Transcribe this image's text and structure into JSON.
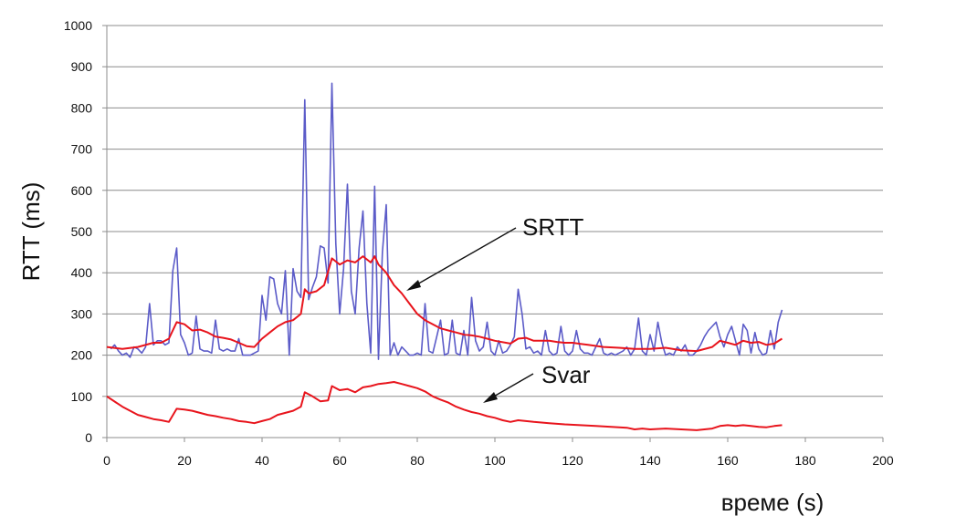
{
  "chart_data": {
    "type": "line",
    "title": "",
    "xlabel": "време (s)",
    "ylabel": "RTT (ms)",
    "xlim": [
      0,
      200
    ],
    "ylim": [
      0,
      1000
    ],
    "xticks": [
      0,
      20,
      40,
      60,
      80,
      100,
      120,
      140,
      160,
      180,
      200
    ],
    "yticks": [
      0,
      100,
      200,
      300,
      400,
      500,
      600,
      700,
      800,
      900,
      1000
    ],
    "grid": "horizontal",
    "colors": {
      "rtt": "#5b5bc8",
      "srtt": "#e8141c",
      "svar": "#e8141c",
      "grid": "#8c8c8c"
    },
    "series": [
      {
        "key": "rtt",
        "values": [
          [
            1,
            215
          ],
          [
            2,
            225
          ],
          [
            3,
            210
          ],
          [
            4,
            200
          ],
          [
            5,
            205
          ],
          [
            6,
            195
          ],
          [
            7,
            220
          ],
          [
            8,
            215
          ],
          [
            9,
            205
          ],
          [
            10,
            220
          ],
          [
            11,
            325
          ],
          [
            12,
            225
          ],
          [
            13,
            235
          ],
          [
            14,
            235
          ],
          [
            15,
            225
          ],
          [
            16,
            230
          ],
          [
            17,
            405
          ],
          [
            18,
            460
          ],
          [
            19,
            250
          ],
          [
            20,
            230
          ],
          [
            21,
            200
          ],
          [
            22,
            205
          ],
          [
            23,
            295
          ],
          [
            24,
            215
          ],
          [
            25,
            210
          ],
          [
            26,
            210
          ],
          [
            27,
            205
          ],
          [
            28,
            285
          ],
          [
            29,
            215
          ],
          [
            30,
            210
          ],
          [
            31,
            215
          ],
          [
            32,
            210
          ],
          [
            33,
            210
          ],
          [
            34,
            240
          ],
          [
            35,
            200
          ],
          [
            36,
            200
          ],
          [
            37,
            200
          ],
          [
            38,
            205
          ],
          [
            39,
            210
          ],
          [
            40,
            345
          ],
          [
            41,
            285
          ],
          [
            42,
            390
          ],
          [
            43,
            385
          ],
          [
            44,
            325
          ],
          [
            45,
            300
          ],
          [
            46,
            405
          ],
          [
            47,
            200
          ],
          [
            48,
            410
          ],
          [
            49,
            355
          ],
          [
            50,
            340
          ],
          [
            51,
            820
          ],
          [
            52,
            335
          ],
          [
            53,
            365
          ],
          [
            54,
            390
          ],
          [
            55,
            465
          ],
          [
            56,
            460
          ],
          [
            57,
            375
          ],
          [
            58,
            860
          ],
          [
            59,
            470
          ],
          [
            60,
            300
          ],
          [
            61,
            410
          ],
          [
            62,
            615
          ],
          [
            63,
            355
          ],
          [
            64,
            300
          ],
          [
            65,
            460
          ],
          [
            66,
            550
          ],
          [
            67,
            325
          ],
          [
            68,
            205
          ],
          [
            69,
            610
          ],
          [
            70,
            190
          ],
          [
            71,
            450
          ],
          [
            72,
            565
          ],
          [
            73,
            200
          ],
          [
            74,
            230
          ],
          [
            75,
            200
          ],
          [
            76,
            220
          ],
          [
            77,
            210
          ],
          [
            78,
            200
          ],
          [
            79,
            200
          ],
          [
            80,
            205
          ],
          [
            81,
            200
          ],
          [
            82,
            325
          ],
          [
            83,
            210
          ],
          [
            84,
            205
          ],
          [
            85,
            245
          ],
          [
            86,
            285
          ],
          [
            87,
            200
          ],
          [
            88,
            205
          ],
          [
            89,
            285
          ],
          [
            90,
            205
          ],
          [
            91,
            200
          ],
          [
            92,
            260
          ],
          [
            93,
            200
          ],
          [
            94,
            340
          ],
          [
            95,
            235
          ],
          [
            96,
            210
          ],
          [
            97,
            220
          ],
          [
            98,
            280
          ],
          [
            99,
            210
          ],
          [
            100,
            200
          ],
          [
            101,
            235
          ],
          [
            102,
            205
          ],
          [
            103,
            210
          ],
          [
            104,
            225
          ],
          [
            105,
            245
          ],
          [
            106,
            360
          ],
          [
            107,
            300
          ],
          [
            108,
            215
          ],
          [
            109,
            220
          ],
          [
            110,
            205
          ],
          [
            111,
            210
          ],
          [
            112,
            200
          ],
          [
            113,
            260
          ],
          [
            114,
            210
          ],
          [
            115,
            200
          ],
          [
            116,
            205
          ],
          [
            117,
            270
          ],
          [
            118,
            210
          ],
          [
            119,
            200
          ],
          [
            120,
            210
          ],
          [
            121,
            260
          ],
          [
            122,
            215
          ],
          [
            123,
            205
          ],
          [
            124,
            205
          ],
          [
            125,
            200
          ],
          [
            126,
            220
          ],
          [
            127,
            240
          ],
          [
            128,
            205
          ],
          [
            129,
            200
          ],
          [
            130,
            205
          ],
          [
            131,
            200
          ],
          [
            132,
            205
          ],
          [
            133,
            210
          ],
          [
            134,
            220
          ],
          [
            135,
            200
          ],
          [
            136,
            215
          ],
          [
            137,
            290
          ],
          [
            138,
            210
          ],
          [
            139,
            200
          ],
          [
            140,
            250
          ],
          [
            141,
            210
          ],
          [
            142,
            280
          ],
          [
            143,
            230
          ],
          [
            144,
            200
          ],
          [
            145,
            205
          ],
          [
            146,
            200
          ],
          [
            147,
            220
          ],
          [
            148,
            210
          ],
          [
            149,
            225
          ],
          [
            150,
            200
          ],
          [
            151,
            200
          ],
          [
            152,
            210
          ],
          [
            153,
            225
          ],
          [
            154,
            245
          ],
          [
            155,
            260
          ],
          [
            156,
            270
          ],
          [
            157,
            280
          ],
          [
            158,
            245
          ],
          [
            159,
            220
          ],
          [
            160,
            250
          ],
          [
            161,
            270
          ],
          [
            162,
            235
          ],
          [
            163,
            200
          ],
          [
            164,
            275
          ],
          [
            165,
            260
          ],
          [
            166,
            205
          ],
          [
            167,
            255
          ],
          [
            168,
            215
          ],
          [
            169,
            200
          ],
          [
            170,
            205
          ],
          [
            171,
            260
          ],
          [
            172,
            215
          ],
          [
            173,
            280
          ],
          [
            174,
            310
          ]
        ]
      },
      {
        "key": "srtt",
        "values": [
          [
            0,
            220
          ],
          [
            4,
            215
          ],
          [
            8,
            220
          ],
          [
            12,
            230
          ],
          [
            14,
            230
          ],
          [
            16,
            240
          ],
          [
            18,
            280
          ],
          [
            20,
            275
          ],
          [
            22,
            260
          ],
          [
            24,
            262
          ],
          [
            26,
            255
          ],
          [
            28,
            245
          ],
          [
            30,
            242
          ],
          [
            32,
            238
          ],
          [
            34,
            230
          ],
          [
            36,
            222
          ],
          [
            38,
            220
          ],
          [
            40,
            240
          ],
          [
            42,
            255
          ],
          [
            44,
            270
          ],
          [
            46,
            280
          ],
          [
            48,
            285
          ],
          [
            50,
            300
          ],
          [
            51,
            360
          ],
          [
            52,
            350
          ],
          [
            54,
            355
          ],
          [
            56,
            370
          ],
          [
            58,
            435
          ],
          [
            60,
            420
          ],
          [
            62,
            430
          ],
          [
            64,
            425
          ],
          [
            66,
            440
          ],
          [
            68,
            425
          ],
          [
            69,
            440
          ],
          [
            70,
            420
          ],
          [
            72,
            400
          ],
          [
            74,
            370
          ],
          [
            76,
            350
          ],
          [
            78,
            325
          ],
          [
            80,
            300
          ],
          [
            82,
            285
          ],
          [
            84,
            275
          ],
          [
            86,
            265
          ],
          [
            88,
            260
          ],
          [
            90,
            255
          ],
          [
            92,
            250
          ],
          [
            94,
            248
          ],
          [
            96,
            245
          ],
          [
            98,
            240
          ],
          [
            100,
            235
          ],
          [
            104,
            228
          ],
          [
            106,
            240
          ],
          [
            108,
            242
          ],
          [
            110,
            235
          ],
          [
            114,
            235
          ],
          [
            116,
            232
          ],
          [
            118,
            230
          ],
          [
            120,
            230
          ],
          [
            124,
            225
          ],
          [
            128,
            220
          ],
          [
            132,
            218
          ],
          [
            136,
            215
          ],
          [
            140,
            215
          ],
          [
            144,
            218
          ],
          [
            148,
            212
          ],
          [
            152,
            210
          ],
          [
            156,
            220
          ],
          [
            158,
            235
          ],
          [
            160,
            230
          ],
          [
            162,
            225
          ],
          [
            164,
            235
          ],
          [
            166,
            230
          ],
          [
            168,
            232
          ],
          [
            170,
            225
          ],
          [
            172,
            228
          ],
          [
            174,
            240
          ]
        ]
      },
      {
        "key": "svar",
        "values": [
          [
            0,
            100
          ],
          [
            4,
            75
          ],
          [
            8,
            55
          ],
          [
            10,
            50
          ],
          [
            12,
            45
          ],
          [
            14,
            42
          ],
          [
            16,
            38
          ],
          [
            18,
            70
          ],
          [
            20,
            68
          ],
          [
            22,
            65
          ],
          [
            24,
            60
          ],
          [
            26,
            55
          ],
          [
            28,
            52
          ],
          [
            30,
            48
          ],
          [
            32,
            45
          ],
          [
            34,
            40
          ],
          [
            36,
            38
          ],
          [
            38,
            35
          ],
          [
            40,
            40
          ],
          [
            42,
            45
          ],
          [
            44,
            55
          ],
          [
            46,
            60
          ],
          [
            48,
            65
          ],
          [
            50,
            75
          ],
          [
            51,
            110
          ],
          [
            53,
            100
          ],
          [
            55,
            88
          ],
          [
            57,
            90
          ],
          [
            58,
            125
          ],
          [
            60,
            115
          ],
          [
            62,
            118
          ],
          [
            64,
            110
          ],
          [
            66,
            122
          ],
          [
            68,
            125
          ],
          [
            70,
            130
          ],
          [
            72,
            132
          ],
          [
            74,
            135
          ],
          [
            76,
            130
          ],
          [
            78,
            125
          ],
          [
            80,
            120
          ],
          [
            82,
            112
          ],
          [
            84,
            100
          ],
          [
            86,
            92
          ],
          [
            88,
            85
          ],
          [
            90,
            75
          ],
          [
            92,
            68
          ],
          [
            94,
            62
          ],
          [
            96,
            58
          ],
          [
            98,
            52
          ],
          [
            100,
            48
          ],
          [
            102,
            42
          ],
          [
            104,
            38
          ],
          [
            106,
            42
          ],
          [
            108,
            40
          ],
          [
            110,
            38
          ],
          [
            114,
            35
          ],
          [
            118,
            32
          ],
          [
            122,
            30
          ],
          [
            126,
            28
          ],
          [
            130,
            26
          ],
          [
            134,
            24
          ],
          [
            136,
            20
          ],
          [
            138,
            22
          ],
          [
            140,
            20
          ],
          [
            144,
            22
          ],
          [
            148,
            20
          ],
          [
            152,
            18
          ],
          [
            156,
            22
          ],
          [
            158,
            28
          ],
          [
            160,
            30
          ],
          [
            162,
            28
          ],
          [
            164,
            30
          ],
          [
            166,
            28
          ],
          [
            168,
            26
          ],
          [
            170,
            25
          ],
          [
            172,
            28
          ],
          [
            174,
            30
          ]
        ]
      }
    ],
    "annotations": [
      {
        "key": "srtt",
        "text": "SRTT"
      },
      {
        "key": "svar",
        "text": "Svar"
      }
    ]
  }
}
